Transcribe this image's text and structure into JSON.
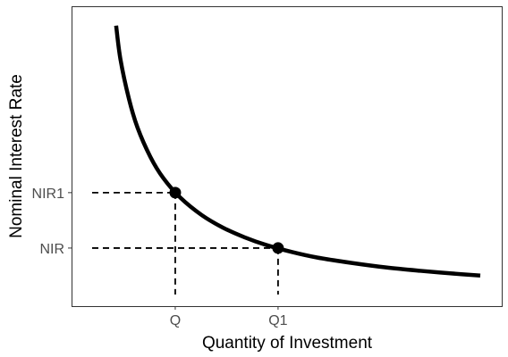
{
  "chart_data": {
    "type": "line",
    "title": "",
    "xlabel": "Quantity of Investment",
    "ylabel": "Nominal Interest Rate",
    "xlim": [
      0,
      10
    ],
    "ylim": [
      0,
      10
    ],
    "grid": false,
    "series": [
      {
        "color": "#000000",
        "x": [
          1.5,
          1.6,
          1.8,
          2.0,
          2.3,
          2.6,
          3.0,
          3.5,
          4.0,
          4.5,
          5.0,
          5.6,
          6.2,
          7.0,
          7.8,
          8.6,
          9.3,
          10.0
        ],
        "y": [
          9.5,
          8.31,
          6.89,
          5.87,
          4.83,
          4.08,
          3.38,
          2.76,
          2.31,
          1.97,
          1.7,
          1.45,
          1.25,
          1.06,
          0.9,
          0.78,
          0.69,
          0.61
        ]
      }
    ],
    "points": [
      {
        "label": "Q",
        "x": 2.88,
        "y": 3.56,
        "ylabel": "NIR1"
      },
      {
        "label": "Q1",
        "x": 5.28,
        "y": 1.59,
        "ylabel": "NIR"
      }
    ],
    "xticks": [
      {
        "value": 2.88,
        "label": "Q"
      },
      {
        "value": 5.28,
        "label": "Q1"
      }
    ],
    "yticks": [
      {
        "value": 3.56,
        "label": "NIR1"
      },
      {
        "value": 1.59,
        "label": "NIR"
      }
    ]
  }
}
